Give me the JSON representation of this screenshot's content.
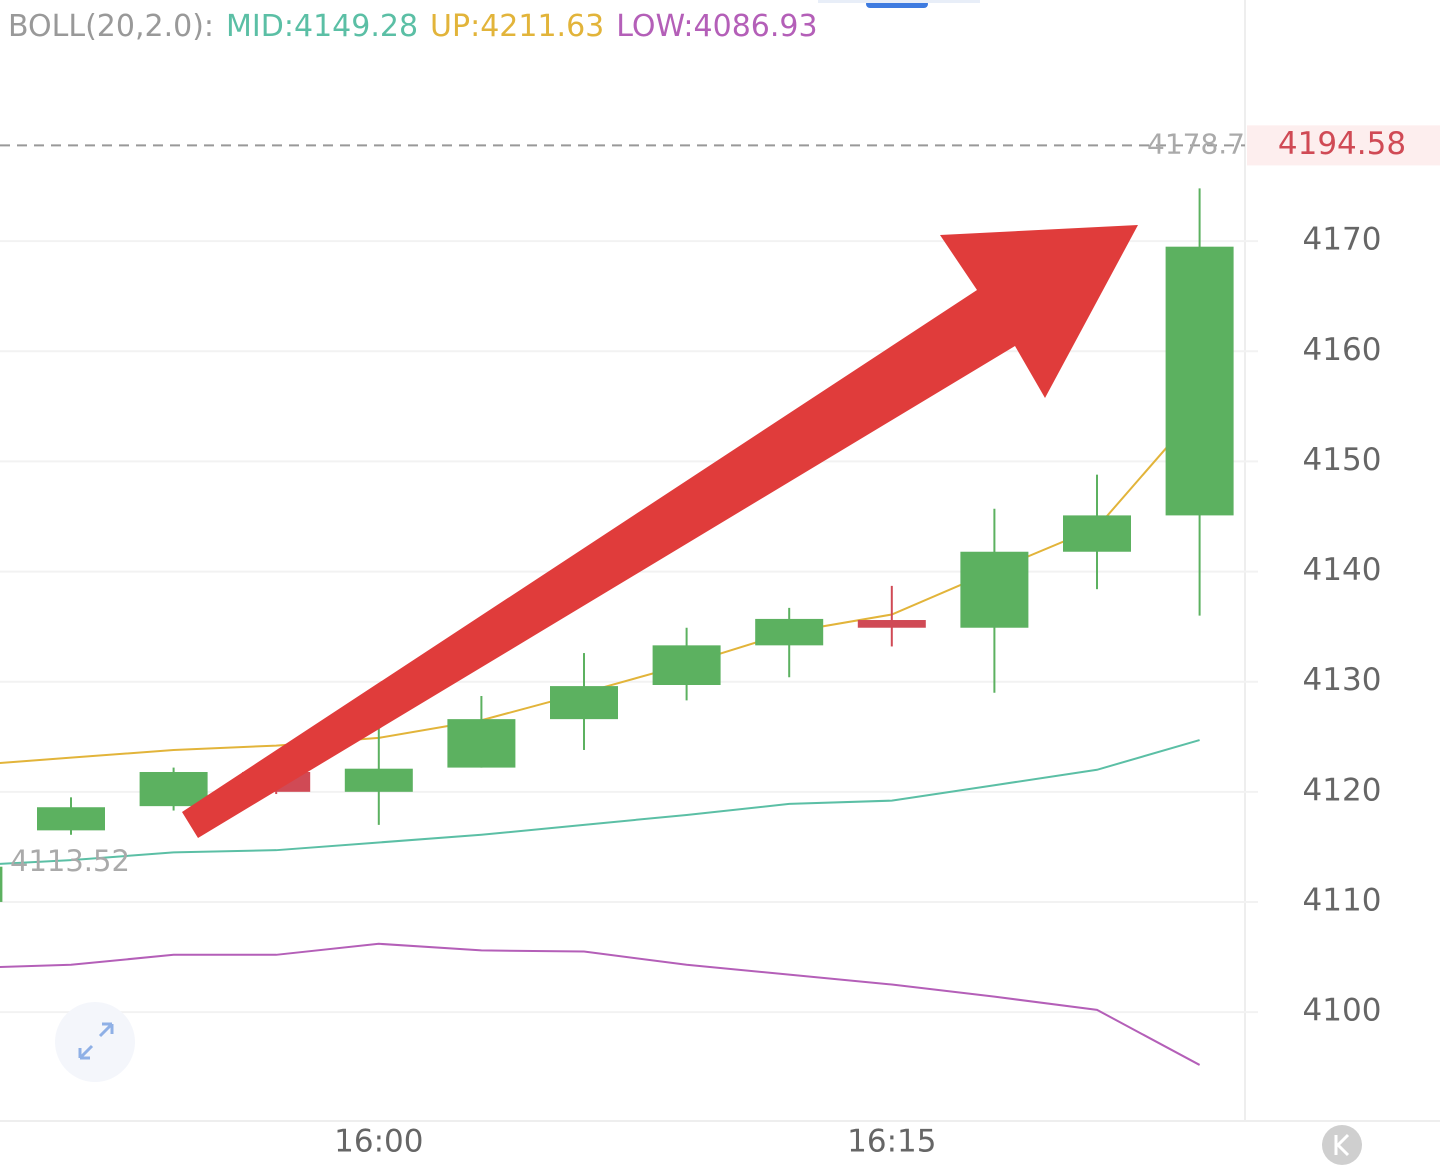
{
  "chart_data": {
    "type": "candlestick",
    "indicator": "BOLL(20,2.0):",
    "categories": [
      null,
      null,
      null,
      null,
      "16:00",
      null,
      null,
      null,
      null,
      "16:15",
      null,
      null,
      null
    ],
    "candles": [
      {
        "open": 4110.0,
        "high": 4113.9,
        "low": 4109.6,
        "close": 4113.2
      },
      {
        "open": 4116.5,
        "high": 4119.5,
        "low": 4116.1,
        "close": 4118.6
      },
      {
        "open": 4118.7,
        "high": 4122.2,
        "low": 4118.3,
        "close": 4121.8
      },
      {
        "open": 4121.8,
        "high": 4122.5,
        "low": 4119.8,
        "close": 4120.0
      },
      {
        "open": 4120.0,
        "high": 4125.8,
        "low": 4117.0,
        "close": 4122.1
      },
      {
        "open": 4122.2,
        "high": 4128.7,
        "low": 4122.2,
        "close": 4126.6
      },
      {
        "open": 4126.6,
        "high": 4132.6,
        "low": 4123.8,
        "close": 4129.6
      },
      {
        "open": 4129.7,
        "high": 4134.9,
        "low": 4128.3,
        "close": 4133.3
      },
      {
        "open": 4133.3,
        "high": 4136.7,
        "low": 4130.4,
        "close": 4135.7
      },
      {
        "open": 4135.6,
        "high": 4138.7,
        "low": 4133.2,
        "close": 4134.9
      },
      {
        "open": 4134.9,
        "high": 4145.7,
        "low": 4129.0,
        "close": 4141.8
      },
      {
        "open": 4141.8,
        "high": 4148.8,
        "low": 4138.4,
        "close": 4145.1
      },
      {
        "open": 4145.1,
        "high": 4174.8,
        "low": 4136.0,
        "close": 4169.5
      }
    ],
    "up_color": "#5cb160",
    "down_color": "#d04a55",
    "series": [
      {
        "name": "MID:",
        "latest": 4149.28,
        "color": "#5bbfa5",
        "values": [
          4113.3,
          4113.8,
          4114.5,
          4114.7,
          4115.4,
          4116.1,
          4117.0,
          4117.9,
          4118.9,
          4119.2,
          4120.6,
          4122.0,
          4124.7
        ]
      },
      {
        "name": "UP:",
        "latest": 4211.63,
        "color": "#e2b43a",
        "values": [
          4122.4,
          4123.1,
          4123.8,
          4124.2,
          4124.9,
          4126.5,
          4129.0,
          4131.6,
          4134.5,
          4136.1,
          4140.1,
          4144.0,
          4154.7
        ]
      },
      {
        "name": "LOW:",
        "latest": 4086.93,
        "color": "#b45fb8",
        "values": [
          4104.0,
          4104.3,
          4105.2,
          4105.2,
          4106.2,
          4105.6,
          4105.5,
          4104.3,
          4103.4,
          4102.5,
          4101.4,
          4100.2,
          4095.2
        ]
      }
    ],
    "high_line": 4178.7,
    "low_label": 4113.52,
    "last_price": 4194.58,
    "ylim": [
      4090.2,
      4191.9
    ],
    "yticks": [
      4100,
      4110,
      4120,
      4130,
      4140,
      4150,
      4160,
      4170
    ],
    "grid": true
  }
}
